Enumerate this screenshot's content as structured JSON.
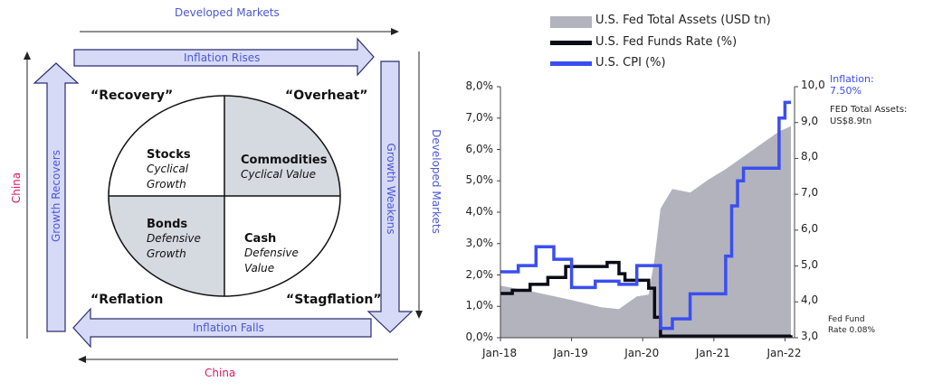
{
  "framework": {
    "top_axis_label": "Developed Markets",
    "right_axis_label": "Developed Markets",
    "bottom_axis_label": "China",
    "left_axis_label": "China",
    "arrow_top": "Inflation Rises",
    "arrow_right": "Growth Weakens",
    "arrow_bottom": "Inflation Falls",
    "arrow_left": "Growth Recovers",
    "phase_tl": "“Recovery”",
    "phase_tr": "“Overheat”",
    "phase_bl": "“Reflation",
    "phase_br": "“Stagflation”",
    "q_tl": {
      "title": "Stocks",
      "sub1": "Cyclical",
      "sub2": "Growth"
    },
    "q_tr": {
      "title": "Commodities",
      "sub1": "Cyclical Value",
      "sub2": ""
    },
    "q_bl": {
      "title": "Bonds",
      "sub1": "Defensive",
      "sub2": "Growth"
    },
    "q_br": {
      "title": "Cash",
      "sub1": "Defensive",
      "sub2": "Value"
    },
    "colors": {
      "arrow_fill": "#d6daf7",
      "arrow_stroke": "#2a2f6e",
      "shaded": "#d5d9e0",
      "label_blue": "#4a57d6",
      "label_red": "#d81b60"
    }
  },
  "chart": {
    "legend": [
      "U.S. Fed Total Assets (USD tn)",
      "U.S. Fed Funds Rate (%)",
      "U.S. CPI (%)"
    ],
    "left_ticks": [
      "8,0%",
      "7,0%",
      "6,0%",
      "5,0%",
      "4,0%",
      "3,0%",
      "2,0%",
      "1,0%",
      "0,0%"
    ],
    "right_ticks": [
      "10,0",
      "9,0",
      "8,0",
      "7,0",
      "6,0",
      "5,0",
      "4,0",
      "3,0"
    ],
    "x_ticks": [
      "Jan-18",
      "Jan-19",
      "Jan-20",
      "Jan-21",
      "Jan-22"
    ],
    "annotation_inflation": [
      "Inflation:",
      "7.50%"
    ],
    "annotation_assets": [
      "FED Total Assets:",
      "US$8.9tn"
    ],
    "annotation_fed": [
      "Fed Fund",
      "Rate 0.08%"
    ],
    "colors": {
      "assets": "#b3b3bd",
      "fed": "#0b0b17",
      "cpi": "#3a4ef0"
    }
  },
  "chart_data": {
    "type": "line",
    "x_range": [
      "2018-01",
      "2022-02"
    ],
    "left_ylim": [
      0,
      8
    ],
    "right_ylim": [
      3,
      10
    ],
    "series": [
      {
        "name": "U.S. Fed Total Assets (USD tn)",
        "axis": "right",
        "style": "area",
        "x": [
          "2018-01",
          "2018-06",
          "2019-01",
          "2019-06",
          "2019-09",
          "2019-12",
          "2020-02",
          "2020-03",
          "2020-04",
          "2020-06",
          "2020-09",
          "2020-12",
          "2021-03",
          "2021-06",
          "2021-09",
          "2021-12",
          "2022-02"
        ],
        "values": [
          4.45,
          4.3,
          4.05,
          3.85,
          3.8,
          4.15,
          4.2,
          5.2,
          6.6,
          7.15,
          7.05,
          7.4,
          7.7,
          8.05,
          8.4,
          8.75,
          8.9
        ]
      },
      {
        "name": "U.S. Fed Funds Rate (%)",
        "axis": "left",
        "style": "line",
        "x": [
          "2018-01",
          "2018-03",
          "2018-06",
          "2018-09",
          "2018-12",
          "2019-07",
          "2019-09",
          "2019-10",
          "2020-02",
          "2020-03",
          "2020-04",
          "2022-02"
        ],
        "values": [
          1.41,
          1.51,
          1.7,
          1.92,
          2.27,
          2.4,
          2.04,
          1.83,
          1.58,
          0.65,
          0.05,
          0.08
        ]
      },
      {
        "name": "U.S. CPI (%)",
        "axis": "left",
        "style": "line",
        "x": [
          "2018-01",
          "2018-04",
          "2018-07",
          "2018-10",
          "2019-01",
          "2019-05",
          "2019-09",
          "2019-12",
          "2020-02",
          "2020-04",
          "2020-06",
          "2020-09",
          "2020-12",
          "2021-03",
          "2021-04",
          "2021-05",
          "2021-06",
          "2021-09",
          "2021-12",
          "2022-01"
        ],
        "values": [
          2.1,
          2.3,
          2.9,
          2.5,
          1.6,
          1.8,
          1.7,
          2.3,
          2.3,
          0.3,
          0.6,
          1.4,
          1.4,
          2.6,
          4.2,
          5.0,
          5.4,
          5.4,
          7.0,
          7.5
        ]
      }
    ]
  }
}
